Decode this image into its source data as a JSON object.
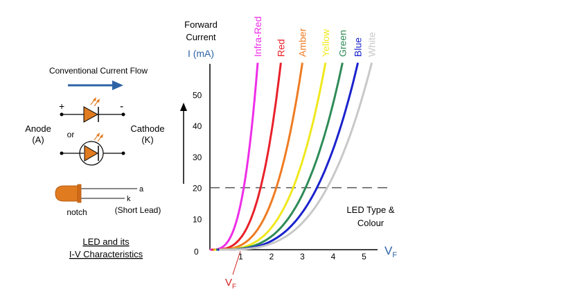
{
  "left_panel": {
    "flow_label": "Conventional Current Flow",
    "plus": "+",
    "minus": "-",
    "or": "or",
    "anode": "Anode",
    "anode_abbr": "(A)",
    "cathode": "Cathode",
    "cathode_abbr": "(K)",
    "lead_a": "a",
    "lead_k": "k",
    "notch": "notch",
    "short_lead": "(Short Lead)",
    "caption_line1": "LED and its",
    "caption_line2": "I-V Characteristics"
  },
  "chart": {
    "ylabel_line1": "Forward",
    "ylabel_line2": "Current",
    "ylabel_line3": "I (mA)",
    "xlabel": "V",
    "xlabel_sub": "F",
    "vf_marker": "V",
    "vf_marker_sub": "F",
    "annotation_line1": "LED Type &",
    "annotation_line2": "Colour",
    "origin_label": "0"
  },
  "colors": {
    "arrow_blue": "#2d63a6",
    "led_orange": "#e07b20",
    "axis": "#000000",
    "dashed": "#555555",
    "axis_label_blue": "#2d63a6",
    "vf_red": "#d42020"
  },
  "chart_data": {
    "type": "line",
    "xlabel": "VF",
    "ylabel": "Forward Current I (mA)",
    "xlim": [
      0,
      5.5
    ],
    "ylim": [
      0,
      60
    ],
    "x_ticks": [
      "1",
      "2",
      "3",
      "4",
      "5"
    ],
    "y_ticks": [
      "10",
      "20",
      "30",
      "40",
      "50"
    ],
    "reference_line": {
      "y": 20,
      "style": "dashed"
    },
    "series": [
      {
        "name": "Infra-Red",
        "color": "#ee2ee8",
        "start_v": 0.0,
        "end_v": 1.55
      },
      {
        "name": "Red",
        "color": "#e8202a",
        "start_v": 0.05,
        "end_v": 2.3
      },
      {
        "name": "Amber",
        "color": "#f07b22",
        "start_v": 0.1,
        "end_v": 3.0
      },
      {
        "name": "Yellow",
        "color": "#f0e81c",
        "start_v": 0.15,
        "end_v": 3.75
      },
      {
        "name": "Green",
        "color": "#2e8b57",
        "start_v": 0.2,
        "end_v": 4.3
      },
      {
        "name": "Blue",
        "color": "#1a22cc",
        "start_v": 0.25,
        "end_v": 4.8
      },
      {
        "name": "White",
        "color": "#c8c8c8",
        "start_v": 0.3,
        "end_v": 5.25
      }
    ]
  }
}
